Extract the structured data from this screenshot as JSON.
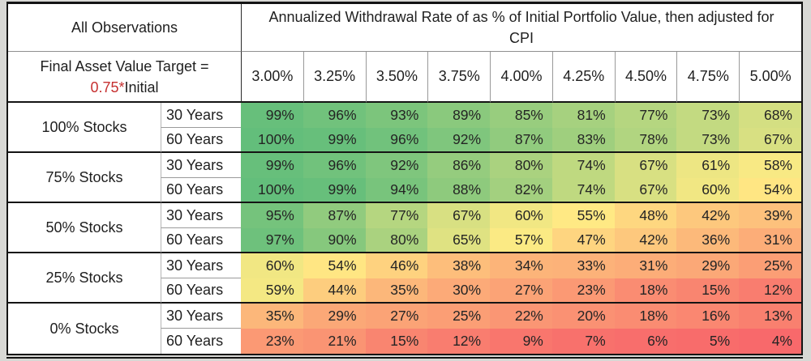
{
  "colors": {
    "page_background": "#D8D8D5",
    "accent_red": "#C63030",
    "border_thick": "#141414",
    "border_thin": "#9A9A9A"
  },
  "table": {
    "left_header_line1": "All Observations",
    "left_header_line2": "Final Asset Value Target =",
    "left_header_line3_red": "0.75*",
    "left_header_line3_black": "Initial",
    "top_header": "Annualized Withdrawal Rate of as % of Initial Portfolio Value, then adjusted for CPI"
  },
  "chart_data": {
    "type": "heatmap",
    "title": "Annualized Withdrawal Rate of as % of Initial Portfolio Value, then adjusted for CPI",
    "subtitle": "All Observations, Final Asset Value Target = 0.75*Initial",
    "columns": [
      "3.00%",
      "3.25%",
      "3.50%",
      "3.75%",
      "4.00%",
      "4.25%",
      "4.50%",
      "4.75%",
      "5.00%"
    ],
    "value_suffix": "%",
    "row_groups": [
      {
        "label": "100% Stocks",
        "rows": [
          {
            "label": "30 Years",
            "values": [
              99,
              96,
              93,
              89,
              85,
              81,
              77,
              73,
              68
            ]
          },
          {
            "label": "60 Years",
            "values": [
              100,
              99,
              96,
              92,
              87,
              83,
              78,
              73,
              67
            ]
          }
        ]
      },
      {
        "label": "75% Stocks",
        "rows": [
          {
            "label": "30 Years",
            "values": [
              99,
              96,
              92,
              86,
              80,
              74,
              67,
              61,
              58
            ]
          },
          {
            "label": "60 Years",
            "values": [
              100,
              99,
              94,
              88,
              82,
              74,
              67,
              60,
              54
            ]
          }
        ]
      },
      {
        "label": "50% Stocks",
        "rows": [
          {
            "label": "30 Years",
            "values": [
              95,
              87,
              77,
              67,
              60,
              55,
              48,
              42,
              39
            ]
          },
          {
            "label": "60 Years",
            "values": [
              97,
              90,
              80,
              65,
              57,
              47,
              42,
              36,
              31
            ]
          }
        ]
      },
      {
        "label": "25% Stocks",
        "rows": [
          {
            "label": "30 Years",
            "values": [
              60,
              54,
              46,
              38,
              34,
              33,
              31,
              29,
              25
            ]
          },
          {
            "label": "60 Years",
            "values": [
              59,
              44,
              35,
              30,
              27,
              23,
              18,
              15,
              12
            ]
          }
        ]
      },
      {
        "label": "0% Stocks",
        "rows": [
          {
            "label": "30 Years",
            "values": [
              35,
              29,
              27,
              25,
              22,
              20,
              18,
              16,
              13
            ]
          },
          {
            "label": "60 Years",
            "values": [
              23,
              21,
              15,
              12,
              9,
              7,
              6,
              5,
              4
            ]
          }
        ]
      }
    ],
    "color_scale": {
      "min_value": 4,
      "mid_value": 56,
      "max_value": 100,
      "min_color": "#F8696B",
      "mid_color": "#FFEB84",
      "max_color": "#63BE7B"
    },
    "legend_position": "none",
    "grid": false
  }
}
